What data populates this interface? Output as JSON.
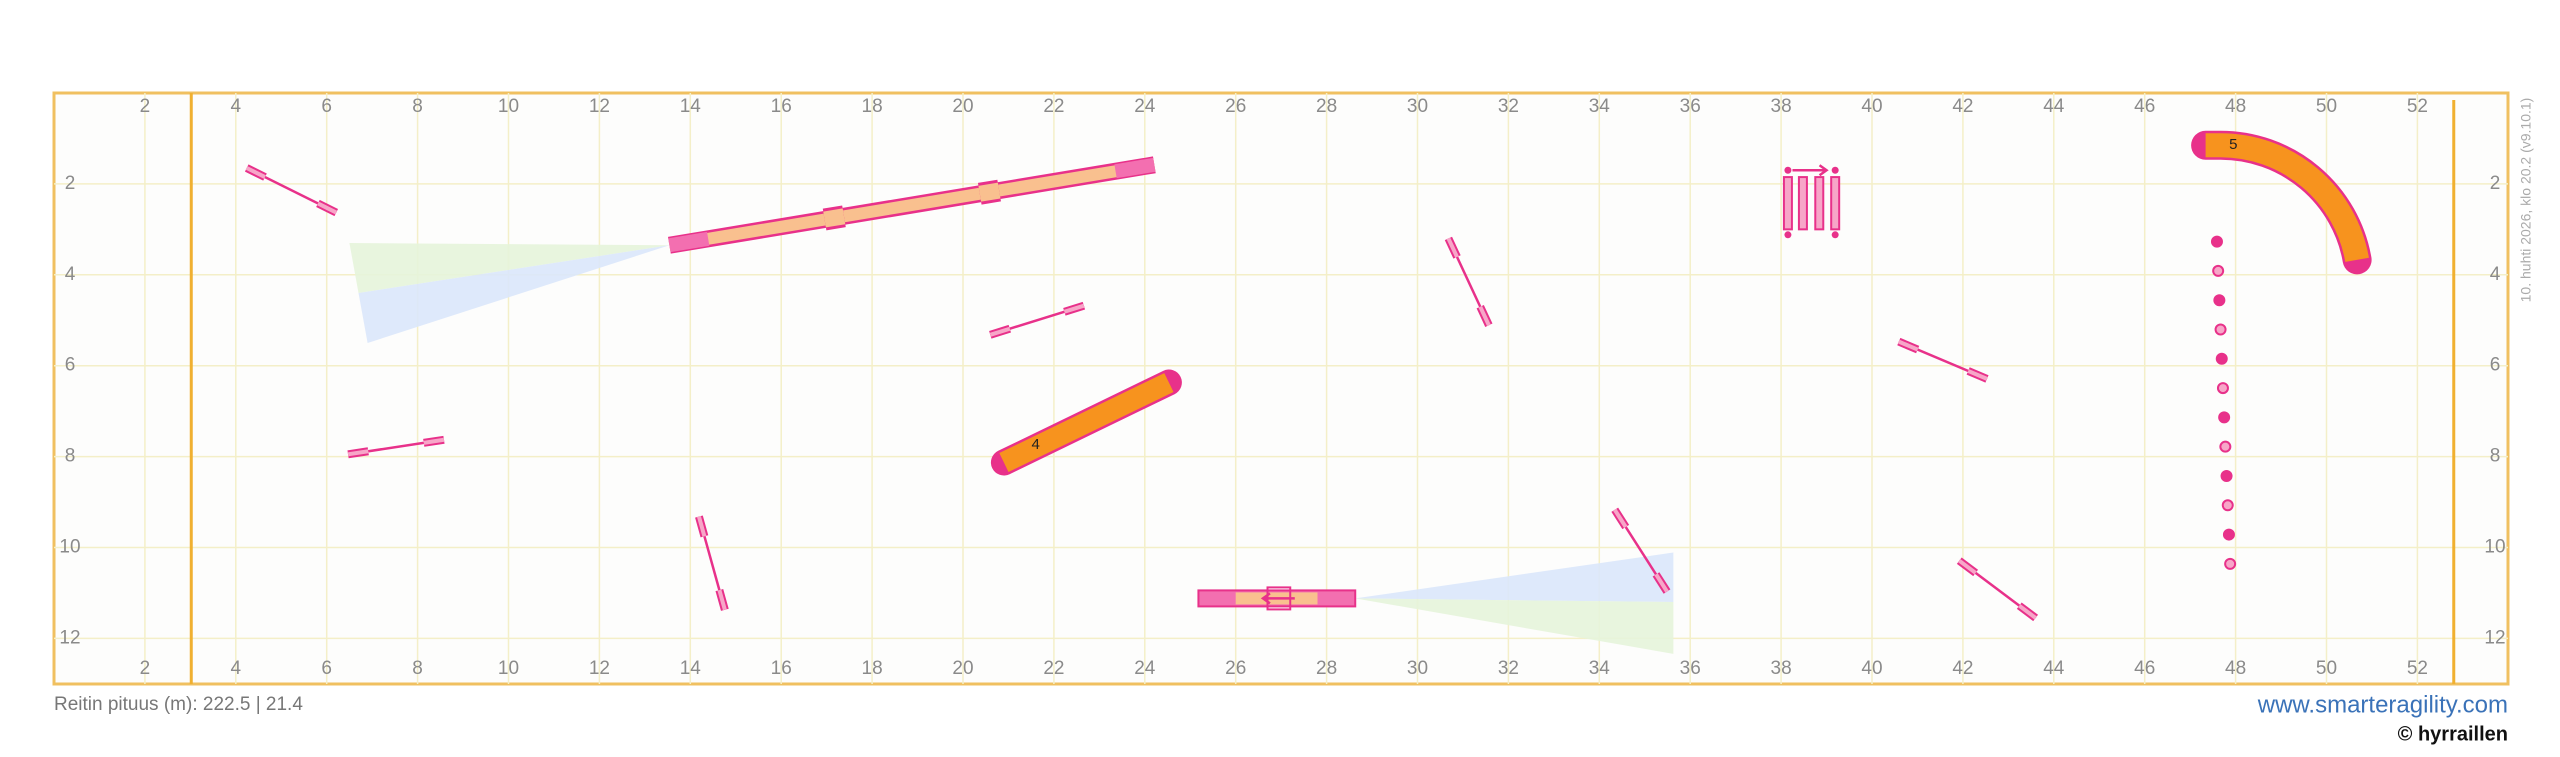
{
  "course": {
    "x_ticks": [
      2,
      4,
      6,
      8,
      10,
      12,
      14,
      16,
      18,
      20,
      22,
      24,
      26,
      28,
      30,
      32,
      34,
      36,
      38,
      40,
      42,
      44,
      46,
      48,
      50,
      52
    ],
    "y_ticks": [
      2,
      4,
      6,
      8,
      10,
      12
    ],
    "obstacle_labels": [
      "4",
      "5"
    ]
  },
  "footer": {
    "route_length": "Reitin pituus (m): 222.5 | 21.4",
    "website": "www.smarteragility.com",
    "copyright": "© hyrraillen"
  },
  "timestamp": "10. huhti 2026, klo 20.2 (v9.10.1)"
}
